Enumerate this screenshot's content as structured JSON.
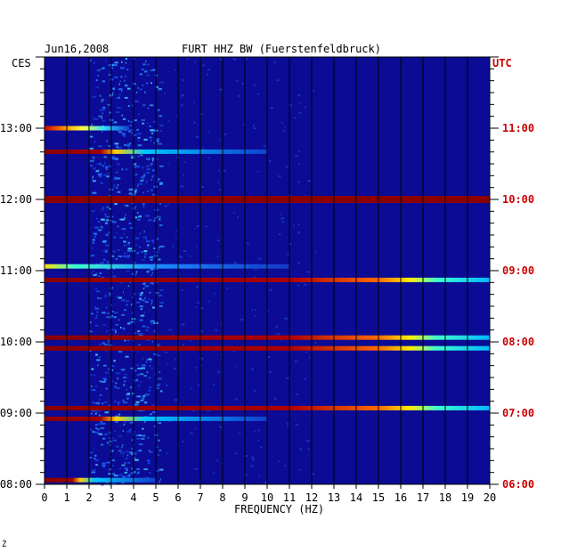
{
  "header": {
    "date": "Jun16,2008",
    "station": "FURT HHZ BW (Fuerstenfeldbruck)",
    "left_axis_label": "CES",
    "right_axis_label": "UTC"
  },
  "footer": {
    "mark": "Ź"
  },
  "colors": {
    "background": "#0b0b96",
    "text": "#000000",
    "utc_text": "#cc0000"
  },
  "chart_data": {
    "type": "heatmap",
    "title": "FURT HHZ BW (Fuerstenfeldbruck)",
    "xlabel": "FREQUENCY (HZ)",
    "xlim": [
      0,
      20
    ],
    "x_ticks": [
      0,
      1,
      2,
      3,
      4,
      5,
      6,
      7,
      8,
      9,
      10,
      11,
      12,
      13,
      14,
      15,
      16,
      17,
      18,
      19,
      20
    ],
    "x_tick_labels": [
      "0",
      "1",
      "2",
      "3",
      "4",
      "5",
      "6",
      "7",
      "8",
      "9",
      "10",
      "11",
      "12",
      "13",
      "14",
      "15",
      "16",
      "17",
      "18",
      "19",
      "20"
    ],
    "y_range_ces_hours": [
      8.0,
      14.0
    ],
    "ces_ticks": [
      {
        "hour": 8,
        "label": "08:00"
      },
      {
        "hour": 9,
        "label": "09:00"
      },
      {
        "hour": 10,
        "label": "10:00"
      },
      {
        "hour": 11,
        "label": "11:00"
      },
      {
        "hour": 12,
        "label": "12:00"
      },
      {
        "hour": 13,
        "label": "13:00"
      }
    ],
    "utc_ticks": [
      {
        "hour": 8,
        "label": "06:00"
      },
      {
        "hour": 9,
        "label": "07:00"
      },
      {
        "hour": 10,
        "label": "08:00"
      },
      {
        "hour": 11,
        "label": "09:00"
      },
      {
        "hour": 12,
        "label": "10:00"
      },
      {
        "hour": 13,
        "label": "11:00"
      }
    ],
    "vertical_gridlines": true,
    "background_level": "low",
    "noise_band_hz": [
      2.0,
      5.2
    ],
    "horizontal_events": [
      {
        "time": 13.0,
        "fmin": 0,
        "fmax": 3.8,
        "peak_hz": 1.5,
        "type": "hot_left"
      },
      {
        "time": 12.67,
        "fmin": 0,
        "fmax": 10,
        "peak_hz": 3.0,
        "type": "red_fade"
      },
      {
        "time": 12.0,
        "fmin": 0,
        "fmax": 20,
        "type": "solid_red"
      },
      {
        "time": 11.06,
        "fmin": 0,
        "fmax": 11,
        "peak_hz": 0.8,
        "type": "cyan_left"
      },
      {
        "time": 10.87,
        "fmin": 0,
        "fmax": 20,
        "peak_hz": 14.5,
        "type": "red_to_cyan"
      },
      {
        "time": 10.06,
        "fmin": 0,
        "fmax": 20,
        "peak_hz": 9.0,
        "type": "red_to_cyan"
      },
      {
        "time": 9.91,
        "fmin": 0,
        "fmax": 20,
        "peak_hz": 17.5,
        "type": "red_to_cyan"
      },
      {
        "time": 9.07,
        "fmin": 0,
        "fmax": 20,
        "peak_hz": 11.5,
        "type": "red_to_cyan"
      },
      {
        "time": 8.92,
        "fmin": 0,
        "fmax": 10,
        "peak_hz": 1.8,
        "type": "red_fade"
      },
      {
        "time": 8.06,
        "fmin": 0,
        "fmax": 5,
        "peak_hz": 2.2,
        "type": "red_fade"
      }
    ]
  }
}
